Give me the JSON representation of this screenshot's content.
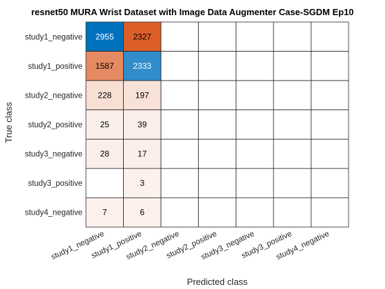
{
  "chart_data": {
    "type": "heatmap",
    "title": "resnet50 MURA Wrist Dataset with Image Data Augmenter Case-SGDM Ep10",
    "xlabel": "Predicted class",
    "ylabel": "True class",
    "row_labels": [
      "study1_negative",
      "study1_positive",
      "study2_negative",
      "study2_positive",
      "study3_negative",
      "study3_positive",
      "study4_negative"
    ],
    "col_labels": [
      "study1_negative",
      "study1_positive",
      "study2_negative",
      "study2_positive",
      "study3_negative",
      "study3_positive",
      "study4_negative"
    ],
    "values": [
      [
        2955,
        2327,
        null,
        null,
        null,
        null,
        null
      ],
      [
        1587,
        2333,
        null,
        null,
        null,
        null,
        null
      ],
      [
        228,
        197,
        null,
        null,
        null,
        null,
        null
      ],
      [
        25,
        39,
        null,
        null,
        null,
        null,
        null
      ],
      [
        28,
        17,
        null,
        null,
        null,
        null,
        null
      ],
      [
        null,
        3,
        null,
        null,
        null,
        null,
        null
      ],
      [
        7,
        6,
        null,
        null,
        null,
        null,
        null
      ]
    ],
    "colors": {
      "correct": "#0072bd",
      "incorrect": "#d95319",
      "empty": "#ffffff",
      "grid": "#262626"
    }
  }
}
